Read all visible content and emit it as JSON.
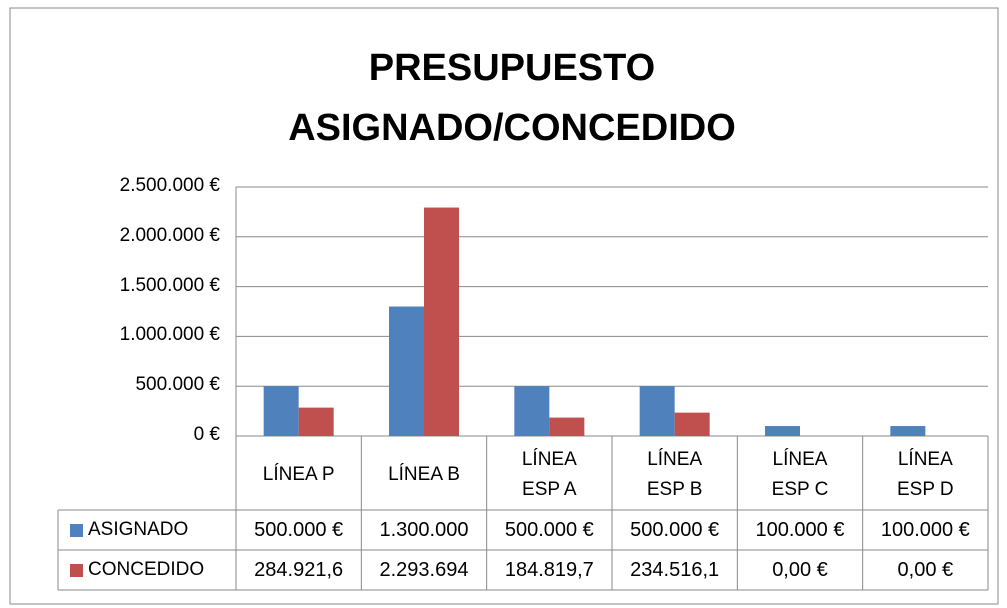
{
  "chart_data": {
    "type": "bar",
    "title": "PRESUPUESTO ASIGNADO/CONCEDIDO",
    "categories": [
      "LÍNEA P",
      "LÍNEA B",
      "LÍNEA ESP A",
      "LÍNEA ESP B",
      "LÍNEA ESP C",
      "LÍNEA ESP D"
    ],
    "series": [
      {
        "name": "ASIGNADO",
        "color": "#4f81bd",
        "values": [
          500000,
          1300000,
          500000,
          500000,
          100000,
          100000
        ],
        "value_labels": [
          "500.000 €",
          "1.300.000",
          "500.000 €",
          "500.000 €",
          "100.000 €",
          "100.000 €"
        ]
      },
      {
        "name": "CONCEDIDO",
        "color": "#c0504d",
        "values": [
          284921.6,
          2293694,
          184819.7,
          234516.1,
          0,
          0
        ],
        "value_labels": [
          "284.921,6",
          "2.293.694",
          "184.819,7",
          "234.516,1",
          "0,00 €",
          "0,00 €"
        ]
      }
    ],
    "ylim": [
      0,
      2500000
    ],
    "yticks": [
      {
        "value": 0,
        "label": "0 €"
      },
      {
        "value": 500000,
        "label": "500.000 €"
      },
      {
        "value": 1000000,
        "label": "1.000.000 €"
      },
      {
        "value": 1500000,
        "label": "1.500.000 €"
      },
      {
        "value": 2000000,
        "label": "2.000.000 €"
      },
      {
        "value": 2500000,
        "label": "2.500.000 €"
      }
    ],
    "grid": true
  }
}
